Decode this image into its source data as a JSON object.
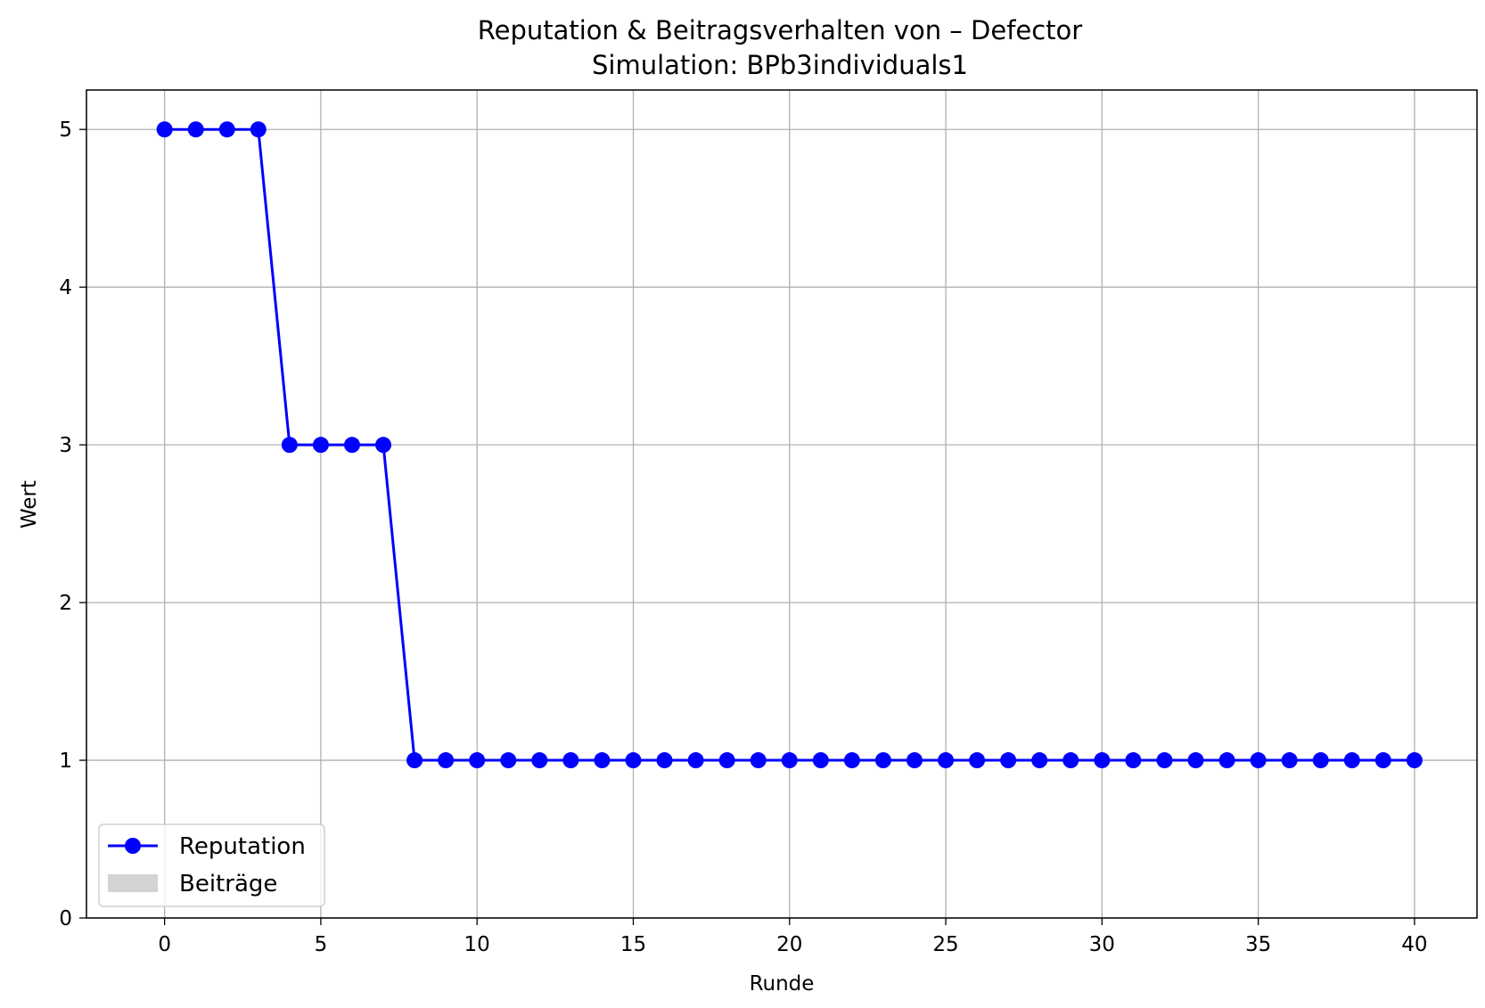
{
  "chart_data": {
    "type": "line",
    "title": "Reputation & Beitragsverhalten von – Defector",
    "subtitle": "Simulation: BPb3individuals1",
    "xlabel": "Runde",
    "ylabel": "Wert",
    "xlim": [
      -2.5,
      42
    ],
    "ylim": [
      0,
      5.25
    ],
    "xticks": [
      0,
      5,
      10,
      15,
      20,
      25,
      30,
      35,
      40
    ],
    "yticks": [
      0,
      1,
      2,
      3,
      4,
      5
    ],
    "grid": true,
    "legend_position": "lower-left",
    "series": [
      {
        "name": "Reputation",
        "color": "#0000ff",
        "marker": "circle",
        "x": [
          0,
          1,
          2,
          3,
          4,
          5,
          6,
          7,
          8,
          9,
          10,
          11,
          12,
          13,
          14,
          15,
          16,
          17,
          18,
          19,
          20,
          21,
          22,
          23,
          24,
          25,
          26,
          27,
          28,
          29,
          30,
          31,
          32,
          33,
          34,
          35,
          36,
          37,
          38,
          39,
          40
        ],
        "values": [
          5,
          5,
          5,
          5,
          3,
          3,
          3,
          3,
          1,
          1,
          1,
          1,
          1,
          1,
          1,
          1,
          1,
          1,
          1,
          1,
          1,
          1,
          1,
          1,
          1,
          1,
          1,
          1,
          1,
          1,
          1,
          1,
          1,
          1,
          1,
          1,
          1,
          1,
          1,
          1,
          1
        ]
      },
      {
        "name": "Beiträge",
        "color": "#d3d3d3",
        "type": "bar",
        "x": [],
        "values": []
      }
    ]
  }
}
